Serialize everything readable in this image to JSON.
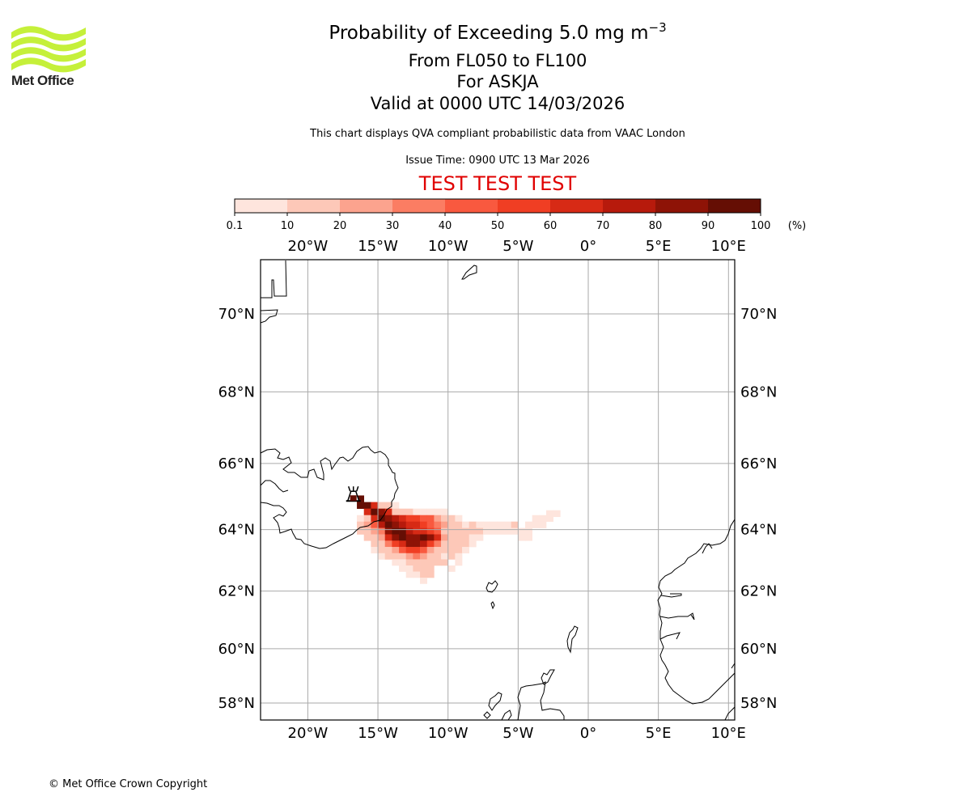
{
  "logo": {
    "text": "Met Office",
    "icon": "met-office-waves-logo",
    "color": "#c5f03a"
  },
  "titles": {
    "line1_main": "Probability of Exceeding 5.0 mg m",
    "line1_sup": "−3",
    "line2": "From FL050 to FL100",
    "line3": "For ASKJA",
    "line4": "Valid at 0000 UTC 14/03/2026",
    "subtitle": "This chart displays QVA compliant probabilistic data from VAAC London",
    "issue_time": "Issue Time: 0900 UTC 13 Mar 2026",
    "test_banner": "TEST TEST TEST"
  },
  "footer": "© Met Office Crown Copyright",
  "chart_data": {
    "type": "heatmap",
    "title": "Probability of Exceeding 5.0 mg m−3",
    "volcano": {
      "name": "ASKJA",
      "lon": -16.75,
      "lat": 65.03,
      "icon": "volcano-icon"
    },
    "colorbar": {
      "unit": "(%)",
      "ticks": [
        "0.1",
        "10",
        "20",
        "30",
        "40",
        "50",
        "60",
        "70",
        "80",
        "90",
        "100"
      ],
      "bins": [
        {
          "min": 0.1,
          "max": 10,
          "color": "#fee5dd"
        },
        {
          "min": 10,
          "max": 20,
          "color": "#fdc8b8"
        },
        {
          "min": 20,
          "max": 30,
          "color": "#fca38e"
        },
        {
          "min": 30,
          "max": 40,
          "color": "#fb7d63"
        },
        {
          "min": 40,
          "max": 50,
          "color": "#f9593f"
        },
        {
          "min": 50,
          "max": 60,
          "color": "#f03e23"
        },
        {
          "min": 60,
          "max": 70,
          "color": "#d72a15"
        },
        {
          "min": 70,
          "max": 80,
          "color": "#b71a0c"
        },
        {
          "min": 80,
          "max": 90,
          "color": "#8e1306"
        },
        {
          "min": 90,
          "max": 100,
          "color": "#650e04"
        }
      ]
    },
    "x_ticks": [
      {
        "lon": -20,
        "label": "20°W"
      },
      {
        "lon": -15,
        "label": "15°W"
      },
      {
        "lon": -10,
        "label": "10°W"
      },
      {
        "lon": -5,
        "label": "5°W"
      },
      {
        "lon": 0,
        "label": "0°"
      },
      {
        "lon": 5,
        "label": "5°E"
      },
      {
        "lon": 10,
        "label": "10°E"
      }
    ],
    "y_ticks": [
      {
        "lat": 70,
        "label": "70°N"
      },
      {
        "lat": 68,
        "label": "68°N"
      },
      {
        "lat": 66,
        "label": "66°N"
      },
      {
        "lat": 64,
        "label": "64°N"
      },
      {
        "lat": 62,
        "label": "62°N"
      },
      {
        "lat": 60,
        "label": "60°N"
      },
      {
        "lat": 58,
        "label": "58°N"
      }
    ],
    "lon_range": [
      -23.5,
      10.4
    ],
    "lat_range": [
      57.6,
      71.5
    ],
    "cell_size_deg": {
      "lon": 0.5,
      "lat": 0.2
    },
    "grid": true,
    "plume_rows": [
      {
        "lat": 64.95,
        "cells": [
          [
            -16.5,
            95
          ]
        ]
      },
      {
        "lat": 64.75,
        "cells": [
          [
            -16.5,
            95
          ],
          [
            -16.0,
            95
          ],
          [
            -15.5,
            65
          ],
          [
            -15.0,
            15
          ],
          [
            -14.5,
            10
          ],
          [
            -14.0,
            5
          ]
        ]
      },
      {
        "lat": 64.55,
        "cells": [
          [
            -16.0,
            65
          ],
          [
            -15.5,
            95
          ],
          [
            -15.0,
            85
          ],
          [
            -14.5,
            65
          ],
          [
            -14.0,
            15
          ],
          [
            -13.5,
            10
          ],
          [
            -13.0,
            10
          ],
          [
            -12.5,
            5
          ],
          [
            -12.0,
            5
          ],
          [
            -11.5,
            5
          ],
          [
            -11.0,
            5
          ],
          [
            -10.5,
            5
          ]
        ]
      },
      {
        "lat": 64.5,
        "cells": [
          [
            -3.0,
            5
          ],
          [
            -2.5,
            5
          ]
        ]
      },
      {
        "lat": 64.35,
        "cells": [
          [
            -16.5,
            5
          ],
          [
            -16.0,
            15
          ],
          [
            -15.5,
            65
          ],
          [
            -15.0,
            95
          ],
          [
            -14.5,
            85
          ],
          [
            -14.0,
            75
          ],
          [
            -13.5,
            65
          ],
          [
            -13.0,
            55
          ],
          [
            -12.5,
            55
          ],
          [
            -12.0,
            45
          ],
          [
            -11.5,
            45
          ],
          [
            -11.0,
            25
          ],
          [
            -10.5,
            15
          ],
          [
            -10.0,
            10
          ],
          [
            -9.5,
            5
          ],
          [
            -4.0,
            5
          ],
          [
            -3.5,
            5
          ],
          [
            -3.0,
            5
          ]
        ]
      },
      {
        "lat": 64.15,
        "cells": [
          [
            -16.5,
            10
          ],
          [
            -16.0,
            25
          ],
          [
            -15.5,
            45
          ],
          [
            -15.0,
            75
          ],
          [
            -14.5,
            95
          ],
          [
            -14.0,
            85
          ],
          [
            -13.5,
            75
          ],
          [
            -13.0,
            65
          ],
          [
            -12.5,
            65
          ],
          [
            -12.0,
            55
          ],
          [
            -11.5,
            45
          ],
          [
            -11.0,
            35
          ],
          [
            -10.5,
            25
          ],
          [
            -10.0,
            15
          ],
          [
            -9.5,
            10
          ],
          [
            -9.0,
            5
          ],
          [
            -8.5,
            10
          ],
          [
            -8.0,
            5
          ],
          [
            -7.5,
            5
          ],
          [
            -7.0,
            5
          ],
          [
            -6.5,
            5
          ],
          [
            -6.0,
            5
          ],
          [
            -5.5,
            15
          ],
          [
            -4.5,
            5
          ],
          [
            -4.0,
            5
          ],
          [
            -3.5,
            5
          ]
        ]
      },
      {
        "lat": 63.95,
        "cells": [
          [
            -16.5,
            10
          ],
          [
            -16.0,
            15
          ],
          [
            -15.5,
            25
          ],
          [
            -15.0,
            35
          ],
          [
            -14.5,
            85
          ],
          [
            -14.0,
            95
          ],
          [
            -13.5,
            95
          ],
          [
            -13.0,
            75
          ],
          [
            -12.5,
            65
          ],
          [
            -12.0,
            65
          ],
          [
            -11.5,
            55
          ],
          [
            -11.0,
            45
          ],
          [
            -10.5,
            15
          ],
          [
            -10.0,
            15
          ],
          [
            -9.5,
            10
          ],
          [
            -9.0,
            15
          ],
          [
            -8.5,
            15
          ],
          [
            -8.0,
            10
          ],
          [
            -7.5,
            5
          ],
          [
            -7.0,
            5
          ],
          [
            -6.5,
            5
          ],
          [
            -6.0,
            5
          ],
          [
            -5.5,
            5
          ],
          [
            -5.0,
            5
          ],
          [
            -4.5,
            5
          ]
        ]
      },
      {
        "lat": 63.75,
        "cells": [
          [
            -16.0,
            10
          ],
          [
            -15.5,
            15
          ],
          [
            -15.0,
            25
          ],
          [
            -14.5,
            65
          ],
          [
            -14.0,
            85
          ],
          [
            -13.5,
            95
          ],
          [
            -13.0,
            85
          ],
          [
            -12.5,
            85
          ],
          [
            -12.0,
            95
          ],
          [
            -11.5,
            85
          ],
          [
            -11.0,
            65
          ],
          [
            -10.5,
            25
          ],
          [
            -10.0,
            15
          ],
          [
            -9.5,
            10
          ],
          [
            -9.0,
            10
          ],
          [
            -8.5,
            5
          ],
          [
            -8.0,
            5
          ],
          [
            -5.0,
            5
          ],
          [
            -4.5,
            5
          ]
        ]
      },
      {
        "lat": 63.55,
        "cells": [
          [
            -15.5,
            10
          ],
          [
            -15.0,
            15
          ],
          [
            -14.5,
            35
          ],
          [
            -14.0,
            55
          ],
          [
            -13.5,
            65
          ],
          [
            -13.0,
            85
          ],
          [
            -12.5,
            85
          ],
          [
            -12.0,
            75
          ],
          [
            -11.5,
            55
          ],
          [
            -11.0,
            35
          ],
          [
            -10.5,
            15
          ],
          [
            -10.0,
            15
          ],
          [
            -9.5,
            10
          ],
          [
            -9.0,
            10
          ],
          [
            -8.5,
            5
          ]
        ]
      },
      {
        "lat": 63.35,
        "cells": [
          [
            -15.5,
            5
          ],
          [
            -15.0,
            10
          ],
          [
            -14.5,
            15
          ],
          [
            -14.0,
            25
          ],
          [
            -13.5,
            45
          ],
          [
            -13.0,
            55
          ],
          [
            -12.5,
            55
          ],
          [
            -12.0,
            45
          ],
          [
            -11.5,
            25
          ],
          [
            -11.0,
            15
          ],
          [
            -10.5,
            15
          ],
          [
            -10.0,
            10
          ],
          [
            -9.5,
            10
          ],
          [
            -9.0,
            5
          ]
        ]
      },
      {
        "lat": 63.15,
        "cells": [
          [
            -15.0,
            5
          ],
          [
            -14.5,
            10
          ],
          [
            -14.0,
            10
          ],
          [
            -13.5,
            15
          ],
          [
            -13.0,
            25
          ],
          [
            -12.5,
            35
          ],
          [
            -12.0,
            25
          ],
          [
            -11.5,
            15
          ],
          [
            -11.0,
            10
          ],
          [
            -10.5,
            5
          ],
          [
            -10.0,
            10
          ],
          [
            -9.5,
            5
          ]
        ]
      },
      {
        "lat": 62.95,
        "cells": [
          [
            -14.0,
            5
          ],
          [
            -13.5,
            5
          ],
          [
            -13.0,
            10
          ],
          [
            -12.5,
            15
          ],
          [
            -12.0,
            15
          ],
          [
            -11.5,
            10
          ],
          [
            -11.0,
            10
          ],
          [
            -10.5,
            10
          ],
          [
            -9.5,
            5
          ]
        ]
      },
      {
        "lat": 62.75,
        "cells": [
          [
            -13.5,
            5
          ],
          [
            -13.0,
            5
          ],
          [
            -12.5,
            10
          ],
          [
            -12.0,
            10
          ],
          [
            -11.5,
            10
          ],
          [
            -10.0,
            5
          ]
        ]
      },
      {
        "lat": 62.55,
        "cells": [
          [
            -13.0,
            5
          ],
          [
            -12.5,
            5
          ],
          [
            -12.0,
            15
          ],
          [
            -11.5,
            15
          ]
        ]
      },
      {
        "lat": 62.35,
        "cells": [
          [
            -12.0,
            5
          ]
        ]
      }
    ]
  }
}
